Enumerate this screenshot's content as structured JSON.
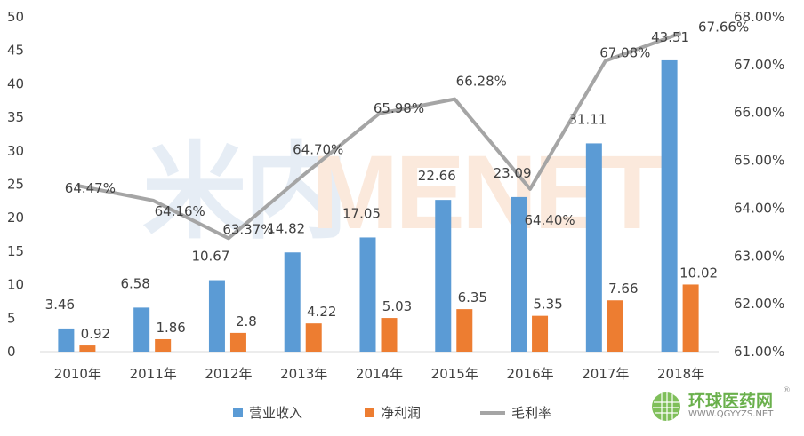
{
  "chart_data": {
    "type": "bar",
    "title": "",
    "categories": [
      "2010年",
      "2011年",
      "2012年",
      "2013年",
      "2014年",
      "2015年",
      "2016年",
      "2017年",
      "2018年"
    ],
    "series": [
      {
        "name": "营业收入",
        "type": "bar",
        "axis": "left",
        "color": "#5B9BD5",
        "values": [
          3.46,
          6.58,
          10.67,
          14.82,
          17.05,
          22.66,
          23.09,
          31.11,
          43.51
        ]
      },
      {
        "name": "净利润",
        "type": "bar",
        "axis": "left",
        "color": "#ED7D31",
        "values": [
          0.92,
          1.86,
          2.8,
          4.22,
          5.03,
          6.35,
          5.35,
          7.66,
          10.02
        ]
      },
      {
        "name": "毛利率",
        "type": "line",
        "axis": "right",
        "color": "#A5A5A5",
        "values": [
          64.47,
          64.16,
          63.37,
          64.7,
          65.98,
          66.28,
          64.4,
          67.08,
          67.66
        ],
        "labels": [
          "64.47%",
          "64.16%",
          "63.37%",
          "64.70%",
          "65.98%",
          "66.28%",
          "64.40%",
          "67.08%",
          "67.66%"
        ]
      }
    ],
    "left_axis": {
      "ylim": [
        0,
        50
      ],
      "ticks": [
        "0",
        "5",
        "10",
        "15",
        "20",
        "25",
        "30",
        "35",
        "40",
        "45",
        "50"
      ]
    },
    "right_axis": {
      "ylim": [
        61,
        68
      ],
      "ticks": [
        "61.00%",
        "62.00%",
        "63.00%",
        "64.00%",
        "65.00%",
        "66.00%",
        "67.00%",
        "68.00%"
      ]
    },
    "grid": false,
    "legend": "bottom"
  },
  "watermark": {
    "cn": "米内",
    "en": "MENET"
  },
  "logo": {
    "name": "环球医药网",
    "url": "WWW.QGYYZS.NET",
    "mark": "®"
  }
}
